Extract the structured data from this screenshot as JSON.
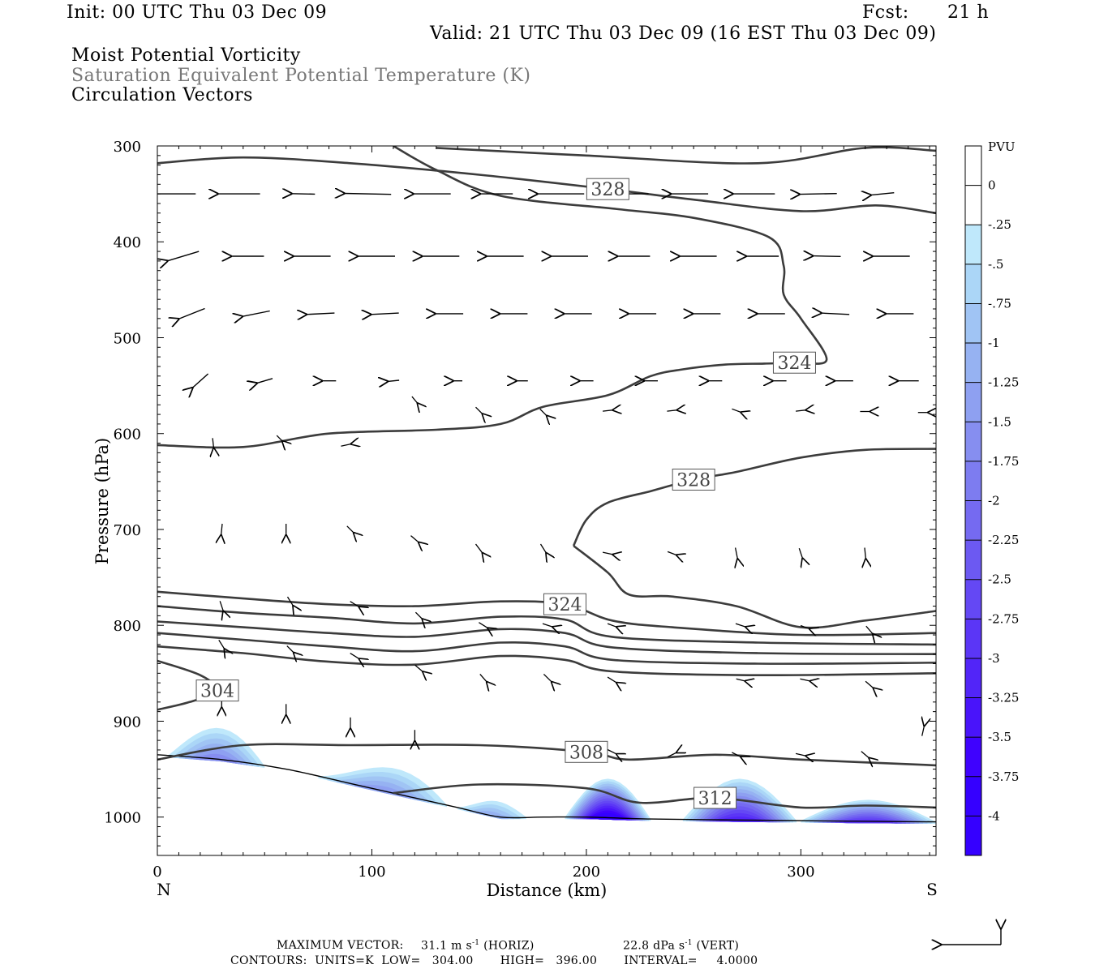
{
  "header": {
    "init": "Init: 00 UTC Thu 03 Dec 09",
    "fcst_label": "Fcst:",
    "fcst_value": "21 h",
    "valid": "Valid: 21 UTC Thu 03 Dec 09 (16 EST Thu 03 Dec 09)",
    "field1": "Moist Potential Vorticity",
    "field2": "Saturation Equivalent Potential Temperature (K)",
    "field3": "Circulation Vectors"
  },
  "footer": {
    "max_vector_label": "MAXIMUM VECTOR:",
    "max_horiz": "31.1 m s",
    "horiz_tag": "(HORIZ)",
    "max_vert": "22.8 dPa s",
    "vert_tag": "(VERT)",
    "neg1": "-1",
    "contours": "CONTOURS:  UNITS=K  LOW=   304.00       HIGH=   396.00       INTERVAL=     4.0000"
  },
  "colors": {
    "contour": "#3c3c3c",
    "mpv_shades": [
      "#bfe8fb",
      "#abd6f7",
      "#a0c4f4",
      "#96b2f2",
      "#8ea0f1",
      "#868ef0",
      "#7d7cf0",
      "#756af1",
      "#6c59f2",
      "#6448f4",
      "#5b36f6",
      "#5225f8",
      "#4914fa",
      "#3f02fe",
      "#3500ff"
    ]
  },
  "chart_data": {
    "type": "cross-section",
    "xlabel": "Distance (km)",
    "ylabel": "Pressure (hPa)",
    "xlim": [
      0,
      363
    ],
    "ylim": [
      1040,
      300
    ],
    "xticks": [
      0,
      100,
      200,
      300
    ],
    "yticks": [
      300,
      400,
      500,
      600,
      700,
      800,
      900,
      1000
    ],
    "x_end_labels": {
      "left": "N",
      "right": "S"
    },
    "colorbar": {
      "title": "PVU",
      "levels": [
        "0",
        "-.25",
        "-.5",
        "-.75",
        "-1",
        "-1.25",
        "-1.5",
        "-1.75",
        "-2",
        "-2.25",
        "-2.5",
        "-2.75",
        "-3",
        "-3.25",
        "-3.5",
        "-3.75",
        "-4"
      ]
    },
    "contours": [
      {
        "level": 328,
        "label": "328",
        "points": [
          [
            0,
            318
          ],
          [
            40,
            312
          ],
          [
            90,
            318
          ],
          [
            150,
            330
          ],
          [
            210,
            345
          ],
          [
            250,
            356
          ],
          [
            300,
            368
          ],
          [
            335,
            362
          ],
          [
            363,
            370
          ]
        ]
      },
      {
        "level": 332,
        "label": "",
        "points": [
          [
            130,
            302
          ],
          [
            200,
            310
          ],
          [
            280,
            318
          ],
          [
            330,
            302
          ],
          [
            363,
            305
          ]
        ]
      },
      {
        "level": 324,
        "label": "324",
        "points": [
          [
            0,
            612
          ],
          [
            40,
            614
          ],
          [
            80,
            600
          ],
          [
            130,
            596
          ],
          [
            160,
            590
          ],
          [
            180,
            572
          ],
          [
            210,
            560
          ],
          [
            230,
            540
          ],
          [
            245,
            533
          ],
          [
            265,
            528
          ],
          [
            283,
            527
          ],
          [
            297,
            526
          ],
          [
            312,
            523
          ],
          [
            300,
            480
          ],
          [
            292,
            455
          ],
          [
            292,
            425
          ],
          [
            285,
            395
          ],
          [
            250,
            375
          ],
          [
            215,
            366
          ],
          [
            160,
            352
          ],
          [
            130,
            325
          ],
          [
            110,
            300
          ]
        ]
      },
      {
        "level": 328,
        "label": "328",
        "points": [
          [
            194,
            717
          ],
          [
            200,
            690
          ],
          [
            210,
            672
          ],
          [
            230,
            660
          ],
          [
            250,
            648
          ],
          [
            270,
            640
          ],
          [
            300,
            625
          ],
          [
            330,
            617
          ],
          [
            363,
            616
          ]
        ]
      },
      {
        "level": 328,
        "label": "",
        "points": [
          [
            194,
            717
          ],
          [
            210,
            745
          ],
          [
            220,
            768
          ],
          [
            240,
            770
          ],
          [
            270,
            780
          ],
          [
            300,
            802
          ],
          [
            330,
            795
          ],
          [
            363,
            785
          ]
        ]
      },
      {
        "level": 324,
        "label": "324",
        "points": [
          [
            0,
            765
          ],
          [
            40,
            772
          ],
          [
            80,
            778
          ],
          [
            120,
            780
          ],
          [
            160,
            775
          ],
          [
            190,
            778
          ],
          [
            212,
            795
          ],
          [
            240,
            802
          ],
          [
            300,
            810
          ],
          [
            363,
            808
          ]
        ]
      },
      {
        "level": 320,
        "label": "",
        "points": [
          [
            0,
            780
          ],
          [
            40,
            787
          ],
          [
            80,
            792
          ],
          [
            120,
            798
          ],
          [
            160,
            791
          ],
          [
            190,
            794
          ],
          [
            212,
            812
          ],
          [
            280,
            818
          ],
          [
            363,
            820
          ]
        ]
      },
      {
        "level": 316,
        "label": "",
        "points": [
          [
            0,
            796
          ],
          [
            40,
            802
          ],
          [
            80,
            808
          ],
          [
            120,
            812
          ],
          [
            160,
            804
          ],
          [
            190,
            808
          ],
          [
            212,
            823
          ],
          [
            280,
            829
          ],
          [
            363,
            830
          ]
        ]
      },
      {
        "level": 312,
        "label": "",
        "points": [
          [
            0,
            808
          ],
          [
            40,
            815
          ],
          [
            80,
            822
          ],
          [
            120,
            827
          ],
          [
            160,
            818
          ],
          [
            190,
            822
          ],
          [
            212,
            836
          ],
          [
            280,
            840
          ],
          [
            363,
            839
          ]
        ]
      },
      {
        "level": 308,
        "label": "",
        "points": [
          [
            0,
            822
          ],
          [
            40,
            829
          ],
          [
            80,
            838
          ],
          [
            120,
            841
          ],
          [
            160,
            832
          ],
          [
            190,
            836
          ],
          [
            212,
            848
          ],
          [
            280,
            852
          ],
          [
            363,
            850
          ]
        ]
      },
      {
        "level": 304,
        "label": "304",
        "points": [
          [
            0,
            837
          ],
          [
            20,
            852
          ],
          [
            28,
            868
          ],
          [
            15,
            880
          ],
          [
            0,
            888
          ]
        ]
      },
      {
        "level": 308,
        "label": "308",
        "points": [
          [
            0,
            940
          ],
          [
            40,
            925
          ],
          [
            90,
            925
          ],
          [
            150,
            925
          ],
          [
            200,
            932
          ],
          [
            220,
            940
          ],
          [
            260,
            935
          ],
          [
            300,
            940
          ],
          [
            363,
            946
          ]
        ]
      },
      {
        "level": 312,
        "label": "312",
        "points": [
          [
            110,
            975
          ],
          [
            150,
            966
          ],
          [
            200,
            970
          ],
          [
            225,
            985
          ],
          [
            260,
            980
          ],
          [
            300,
            990
          ],
          [
            330,
            988
          ],
          [
            363,
            990
          ]
        ]
      }
    ],
    "mpv_pools": [
      {
        "x": [
          5,
          50
        ],
        "p_top": 907,
        "min": -1.5
      },
      {
        "x": [
          75,
          135
        ],
        "p_top": 948,
        "min": -1.25
      },
      {
        "x": [
          140,
          172
        ],
        "p_top": 983,
        "min": -1.0
      },
      {
        "x": [
          190,
          230
        ],
        "p_top": 960,
        "min": -4.0
      },
      {
        "x": [
          245,
          298
        ],
        "p_top": 960,
        "min": -3.0
      },
      {
        "x": [
          300,
          363
        ],
        "p_top": 982,
        "min": -2.75
      }
    ],
    "terrain_p": [
      [
        0,
        935
      ],
      [
        30,
        940
      ],
      [
        60,
        950
      ],
      [
        90,
        965
      ],
      [
        120,
        980
      ],
      [
        140,
        990
      ],
      [
        160,
        1000
      ],
      [
        180,
        1000
      ],
      [
        200,
        1000
      ],
      [
        230,
        1002
      ],
      [
        270,
        1003
      ],
      [
        310,
        1004
      ],
      [
        363,
        1005
      ]
    ],
    "vectors": [
      {
        "p": 350,
        "x": [
          8,
          38,
          68,
          98,
          128,
          158,
          188,
          218,
          248,
          278,
          308,
          338
        ],
        "u": [
          -1,
          -1,
          -1,
          -1,
          -1,
          -1,
          -1,
          -1,
          -1,
          -1,
          -1,
          -1
        ],
        "w": [
          0,
          0,
          0.02,
          0.02,
          0,
          0,
          0,
          0,
          0,
          0,
          -0.02,
          -0.1
        ],
        "len": [
          0.9,
          0.9,
          0.5,
          1,
          0.8,
          0.7,
          1,
          1,
          0.8,
          0.9,
          0.8,
          0.5
        ]
      },
      {
        "p": 415,
        "x": [
          12,
          42,
          72,
          102,
          132,
          162,
          192,
          222,
          252,
          282,
          312,
          342
        ],
        "u": [
          -1,
          -1,
          -1,
          -1,
          -1,
          -1,
          -1,
          -1,
          -1,
          -1,
          -1,
          -1
        ],
        "w": [
          -0.3,
          0,
          0,
          0,
          0,
          0,
          0,
          0,
          0,
          0,
          0.02,
          0
        ],
        "len": [
          0.7,
          0.7,
          0.8,
          0.8,
          0.8,
          0.8,
          0.8,
          0.7,
          0.8,
          0.7,
          0.6,
          0.8
        ]
      },
      {
        "p": 475,
        "x": [
          16,
          46,
          76,
          106,
          136,
          166,
          196,
          226,
          256,
          286,
          316,
          346
        ],
        "u": [
          -1,
          -1,
          -1,
          -1,
          -1,
          -1,
          -1,
          -1,
          -1,
          -1,
          -1,
          -1
        ],
        "w": [
          -0.4,
          -0.2,
          -0.05,
          -0.05,
          0,
          0,
          0,
          0,
          0,
          0,
          0.05,
          0
        ],
        "len": [
          0.6,
          0.6,
          0.6,
          0.6,
          0.6,
          0.6,
          0.6,
          0.6,
          0.6,
          0.6,
          0.6,
          0.6
        ]
      },
      {
        "p": 545,
        "x": [
          20,
          50,
          80,
          110,
          140,
          170,
          200,
          230,
          260,
          290,
          320,
          350
        ],
        "u": [
          -1,
          -1,
          -1,
          -1,
          -1,
          -1,
          -1,
          -1,
          -1,
          -1,
          -1,
          -1
        ],
        "w": [
          -0.9,
          -0.3,
          0,
          -0.1,
          0,
          0,
          0,
          0,
          0,
          0,
          0,
          0
        ],
        "len": [
          0.45,
          0.35,
          0.3,
          0.25,
          0.2,
          0.25,
          0.3,
          0.3,
          0.3,
          0.3,
          0.4,
          0.45
        ]
      }
    ],
    "vector_scale": {
      "horiz_max": "31.1 m s-1",
      "vert_max": "22.8 dPa s-1"
    }
  }
}
